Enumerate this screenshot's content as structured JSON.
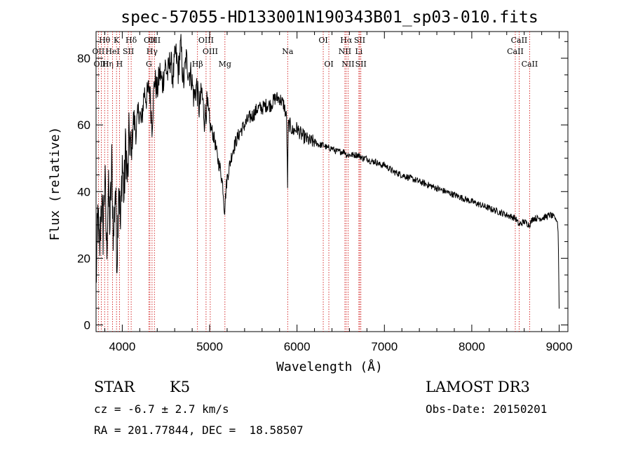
{
  "chart_data": {
    "type": "line",
    "title": "spec-57055-HD133001N190343B01_sp03-010.fits",
    "xlabel": "Wavelength (Å)",
    "ylabel": "Flux (relative)",
    "xlim": [
      3700,
      9100
    ],
    "ylim": [
      -2,
      88
    ],
    "xticks": [
      4000,
      5000,
      6000,
      7000,
      8000,
      9000
    ],
    "yticks": [
      0,
      20,
      40,
      60,
      80
    ],
    "series": [
      {
        "name": "flux",
        "x": [
          3700,
          3720,
          3740,
          3760,
          3780,
          3800,
          3820,
          3840,
          3860,
          3880,
          3900,
          3920,
          3940,
          3960,
          3980,
          4000,
          4020,
          4040,
          4060,
          4080,
          4100,
          4130,
          4160,
          4190,
          4220,
          4250,
          4280,
          4310,
          4340,
          4370,
          4400,
          4430,
          4460,
          4490,
          4520,
          4550,
          4580,
          4610,
          4640,
          4670,
          4700,
          4730,
          4760,
          4790,
          4820,
          4850,
          4880,
          4910,
          4940,
          4970,
          5000,
          5030,
          5060,
          5090,
          5120,
          5150,
          5170,
          5185,
          5200,
          5230,
          5260,
          5300,
          5350,
          5400,
          5450,
          5500,
          5550,
          5600,
          5650,
          5700,
          5750,
          5800,
          5850,
          5880,
          5892,
          5900,
          5920,
          5950,
          6000,
          6050,
          6100,
          6150,
          6200,
          6250,
          6300,
          6350,
          6400,
          6450,
          6500,
          6550,
          6563,
          6600,
          6650,
          6700,
          6750,
          6800,
          6850,
          6900,
          6950,
          7000,
          7100,
          7200,
          7300,
          7400,
          7500,
          7600,
          7700,
          7800,
          7900,
          8000,
          8100,
          8200,
          8300,
          8400,
          8500,
          8540,
          8600,
          8660,
          8700,
          8800,
          8900,
          8950,
          8980,
          8990,
          9000
        ],
        "values": [
          12,
          33,
          20,
          38,
          28,
          45,
          22,
          40,
          30,
          48,
          25,
          42,
          20,
          45,
          28,
          50,
          38,
          55,
          42,
          58,
          50,
          62,
          58,
          65,
          60,
          70,
          68,
          72,
          60,
          74,
          70,
          76,
          72,
          78,
          75,
          80,
          74,
          82,
          76,
          84,
          72,
          80,
          76,
          75,
          68,
          72,
          65,
          70,
          62,
          66,
          60,
          58,
          55,
          50,
          47,
          42,
          34,
          40,
          44,
          48,
          52,
          55,
          58,
          60,
          62,
          63,
          65,
          65,
          66,
          66,
          68,
          68,
          66,
          62,
          42,
          60,
          60,
          58,
          59,
          57,
          56,
          55,
          55,
          54,
          54,
          53,
          53,
          52,
          52,
          52,
          51,
          51,
          51,
          51,
          50,
          50,
          49,
          49,
          48,
          48,
          46,
          45,
          44,
          43,
          42,
          41,
          40,
          39,
          38,
          37,
          36,
          35,
          34,
          33,
          32,
          30,
          31,
          30,
          32,
          32,
          33,
          32,
          31,
          27,
          5
        ]
      }
    ],
    "lines": [
      {
        "label": "Hθ",
        "x": 3798,
        "row": 1
      },
      {
        "label": "OII",
        "x": 3727,
        "row": 2
      },
      {
        "label": "OIII",
        "x": 3760,
        "row": 3
      },
      {
        "label": "Hη",
        "x": 3835,
        "row": 3
      },
      {
        "label": "HeI",
        "x": 3889,
        "row": 2
      },
      {
        "label": "K",
        "x": 3934,
        "row": 1
      },
      {
        "label": "H",
        "x": 3968,
        "row": 3
      },
      {
        "label": "SII",
        "x": 4070,
        "row": 2
      },
      {
        "label": "Hδ",
        "x": 4102,
        "row": 1
      },
      {
        "label": "OII",
        "x": 4317,
        "row": 1
      },
      {
        "label": "Hγ",
        "x": 4341,
        "row": 2
      },
      {
        "label": "G",
        "x": 4305,
        "row": 3
      },
      {
        "label": "OII",
        "x": 4368,
        "row": 1
      },
      {
        "label": "Hβ",
        "x": 4861,
        "row": 3
      },
      {
        "label": "OIII",
        "x": 4959,
        "row": 1
      },
      {
        "label": "OIII",
        "x": 5007,
        "row": 2
      },
      {
        "label": "Mg",
        "x": 5175,
        "row": 3
      },
      {
        "label": "Na",
        "x": 5893,
        "row": 2
      },
      {
        "label": "OI",
        "x": 6300,
        "row": 1
      },
      {
        "label": "OI",
        "x": 6364,
        "row": 3
      },
      {
        "label": "Hα",
        "x": 6563,
        "row": 1
      },
      {
        "label": "NII",
        "x": 6548,
        "row": 2
      },
      {
        "label": "NII",
        "x": 6584,
        "row": 3
      },
      {
        "label": "SII",
        "x": 6717,
        "row": 1
      },
      {
        "label": "Li",
        "x": 6708,
        "row": 2
      },
      {
        "label": "SII",
        "x": 6731,
        "row": 3
      },
      {
        "label": "CaII",
        "x": 8542,
        "row": 1
      },
      {
        "label": "CaII",
        "x": 8498,
        "row": 2
      },
      {
        "label": "CaII",
        "x": 8662,
        "row": 3
      }
    ]
  },
  "info": {
    "class_label": "STAR",
    "subclass": "K5",
    "survey": "LAMOST DR3",
    "cz_line": "cz = -6.7 ± 2.7 km/s",
    "obs_date": "Obs-Date: 20150201",
    "radec": "RA = 201.77844, DEC =  18.58507"
  },
  "colors": {
    "line_marker": "#cc0000",
    "spectrum": "#000000"
  }
}
